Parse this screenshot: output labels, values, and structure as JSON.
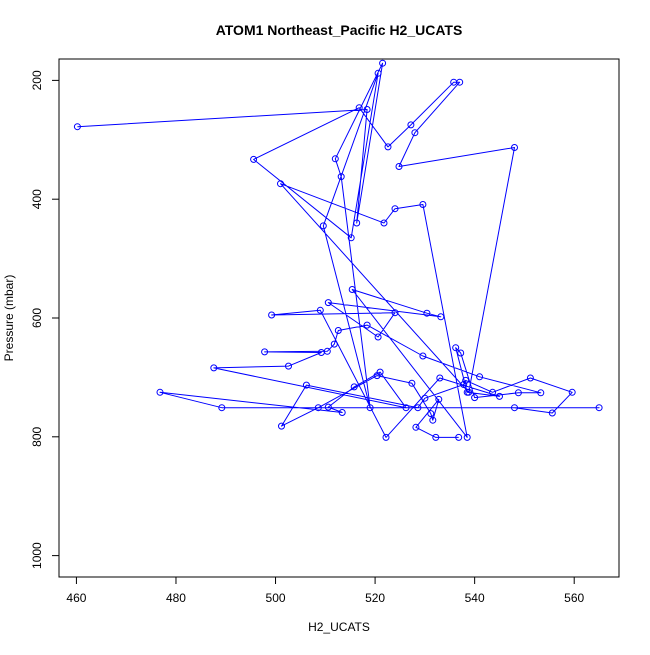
{
  "chart_data": {
    "type": "line",
    "title": "ATOM1 Northeast_Pacific H2_UCATS",
    "xlabel": "H2_UCATS",
    "ylabel": "Pressure (mbar)",
    "xlim": [
      456.5,
      569
    ],
    "ylim": [
      1036,
      164
    ],
    "y_reversed": true,
    "xticks": [
      460,
      480,
      500,
      520,
      540,
      560
    ],
    "yticks": [
      200,
      400,
      600,
      800,
      1000
    ],
    "grid": false,
    "legend": "none",
    "colors": {
      "series": "#0000ff",
      "axis": "#000000",
      "background": "#ffffff"
    },
    "series": [
      {
        "marker": "open-circle",
        "points": [
          [
            460.2,
            278
          ],
          [
            518.4,
            249
          ],
          [
            516.3,
            440
          ],
          [
            521.5,
            171
          ],
          [
            512.0,
            332
          ],
          [
            513.2,
            362
          ],
          [
            519.0,
            751
          ],
          [
            509.6,
            445
          ],
          [
            520.6,
            188
          ],
          [
            515.2,
            465
          ],
          [
            495.6,
            333
          ],
          [
            516.8,
            246
          ],
          [
            522.6,
            312
          ],
          [
            527.2,
            275
          ],
          [
            535.8,
            203
          ],
          [
            537.0,
            203
          ],
          [
            528.0,
            288
          ],
          [
            524.8,
            345
          ],
          [
            548.0,
            313
          ],
          [
            538.8,
            725
          ],
          [
            501.0,
            374
          ],
          [
            521.8,
            440
          ],
          [
            524.0,
            416
          ],
          [
            529.6,
            409
          ],
          [
            538.5,
            801
          ],
          [
            515.4,
            552
          ],
          [
            530.4,
            592
          ],
          [
            533.2,
            598
          ],
          [
            510.6,
            574
          ],
          [
            520.6,
            632
          ],
          [
            524.0,
            591
          ],
          [
            499.2,
            595
          ],
          [
            509.0,
            587
          ],
          [
            522.2,
            801
          ],
          [
            533.0,
            701
          ],
          [
            545.0,
            732
          ],
          [
            538.5,
            725
          ],
          [
            536.2,
            650
          ],
          [
            537.2,
            659
          ],
          [
            540.0,
            734
          ],
          [
            548.8,
            726
          ],
          [
            553.3,
            726
          ],
          [
            541.0,
            699
          ],
          [
            529.6,
            664
          ],
          [
            518.4,
            612
          ],
          [
            512.6,
            621
          ],
          [
            511.8,
            644
          ],
          [
            510.4,
            656
          ],
          [
            497.8,
            657
          ],
          [
            509.2,
            658
          ],
          [
            502.6,
            681
          ],
          [
            487.6,
            684
          ],
          [
            526.2,
            751
          ],
          [
            521.0,
            691
          ],
          [
            515.8,
            716
          ],
          [
            510.6,
            750
          ],
          [
            513.4,
            759
          ],
          [
            476.8,
            725
          ],
          [
            489.2,
            751
          ],
          [
            565.0,
            751
          ],
          [
            548.0,
            751
          ],
          [
            555.6,
            760
          ],
          [
            559.6,
            725
          ],
          [
            551.2,
            701
          ],
          [
            543.6,
            725
          ],
          [
            538.2,
            705
          ],
          [
            537.8,
            712
          ],
          [
            530.0,
            735
          ],
          [
            528.6,
            751
          ],
          [
            506.2,
            713
          ],
          [
            501.2,
            782
          ],
          [
            508.6,
            751
          ],
          [
            520.4,
            697
          ],
          [
            527.4,
            710
          ],
          [
            531.2,
            761
          ],
          [
            531.6,
            772
          ],
          [
            532.8,
            737
          ],
          [
            528.2,
            784
          ],
          [
            532.2,
            801
          ],
          [
            536.8,
            801
          ]
        ]
      }
    ]
  }
}
